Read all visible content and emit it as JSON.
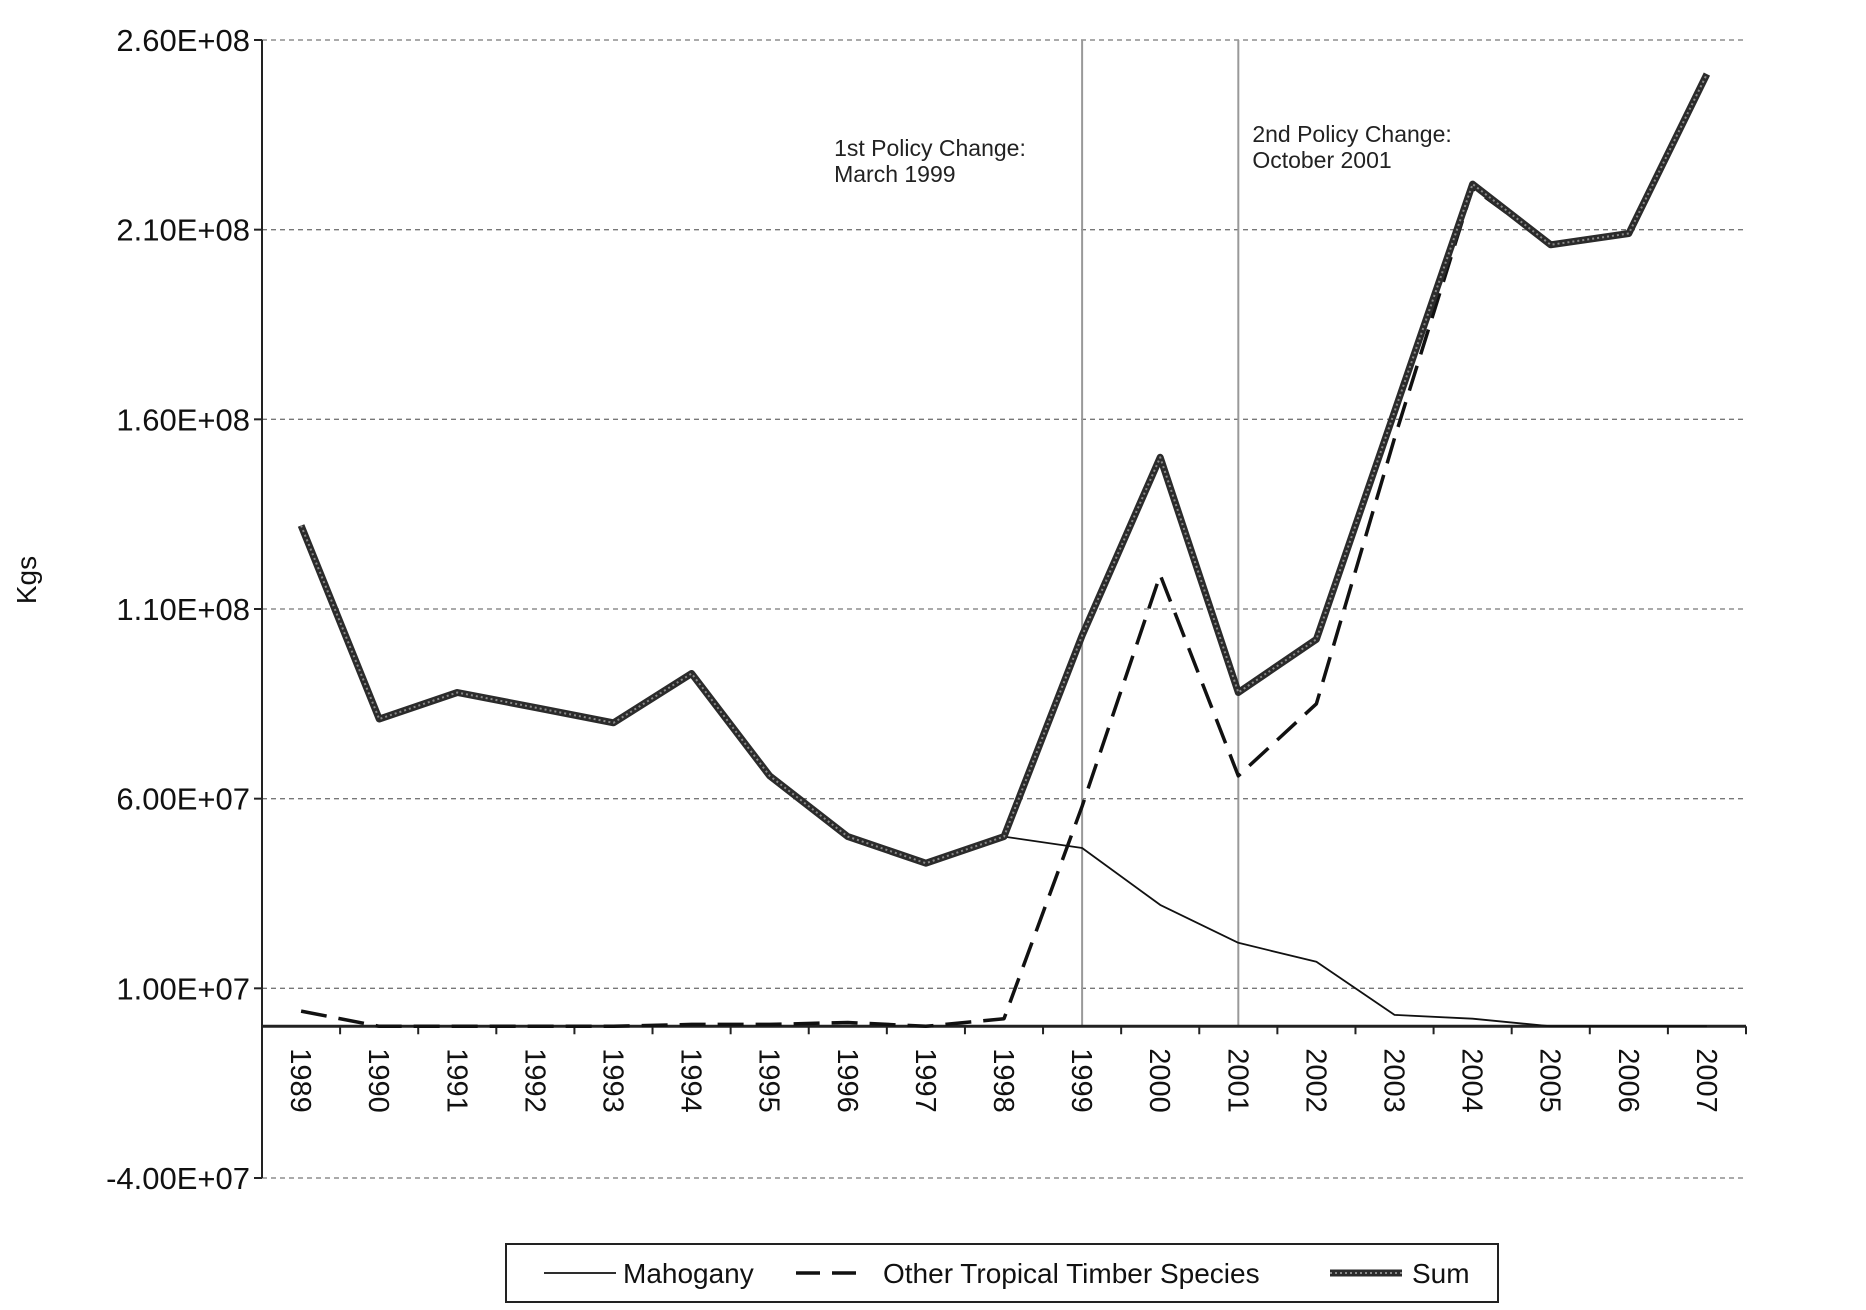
{
  "chart_data": {
    "type": "line",
    "title": "",
    "xlabel": "",
    "ylabel": "Kgs",
    "categories": [
      "1989",
      "1990",
      "1991",
      "1992",
      "1993",
      "1994",
      "1995",
      "1996",
      "1997",
      "1998",
      "1999",
      "2000",
      "2001",
      "2002",
      "2003",
      "2004",
      "2005",
      "2006",
      "2007"
    ],
    "ylim": [
      -40000000,
      260000000
    ],
    "y_ticks": [
      {
        "value": 260000000,
        "label": "2.60E+08"
      },
      {
        "value": 210000000,
        "label": "2.10E+08"
      },
      {
        "value": 160000000,
        "label": "1.60E+08"
      },
      {
        "value": 110000000,
        "label": "1.10E+08"
      },
      {
        "value": 60000000,
        "label": "6.00E+07"
      },
      {
        "value": 10000000,
        "label": "1.00E+07"
      },
      {
        "value": -40000000,
        "label": "-4.00E+07"
      }
    ],
    "grid": "horizontal dashed",
    "legend_position": "bottom",
    "series": [
      {
        "name": "Mahogany",
        "style": "thin-solid",
        "values": [
          132000000,
          81000000,
          88000000,
          84000000,
          80000000,
          93000000,
          66000000,
          50000000,
          43000000,
          50000000,
          47000000,
          32000000,
          22000000,
          17000000,
          3000000,
          2000000,
          0,
          0,
          0
        ]
      },
      {
        "name": "Other Tropical Timber Species",
        "style": "dashed",
        "values": [
          4000000,
          0,
          0,
          0,
          0,
          500000,
          500000,
          1000000,
          0,
          2000000,
          58000000,
          119000000,
          66000000,
          85000000,
          155000000,
          221000000,
          206000000,
          209000000,
          251000000
        ]
      },
      {
        "name": "Sum",
        "style": "thick-dotted",
        "values": [
          132000000,
          81000000,
          88000000,
          84000000,
          80000000,
          93000000,
          66000000,
          50000000,
          43000000,
          50000000,
          103000000,
          150000000,
          88000000,
          102000000,
          162000000,
          222000000,
          206000000,
          209000000,
          251000000
        ]
      }
    ],
    "annotations": [
      {
        "x_year": "1999",
        "label_lines": [
          "1st Policy Change:",
          "March 1999"
        ]
      },
      {
        "x_year": "2001",
        "label_lines": [
          "2nd Policy Change:",
          "October 2001"
        ]
      }
    ]
  }
}
